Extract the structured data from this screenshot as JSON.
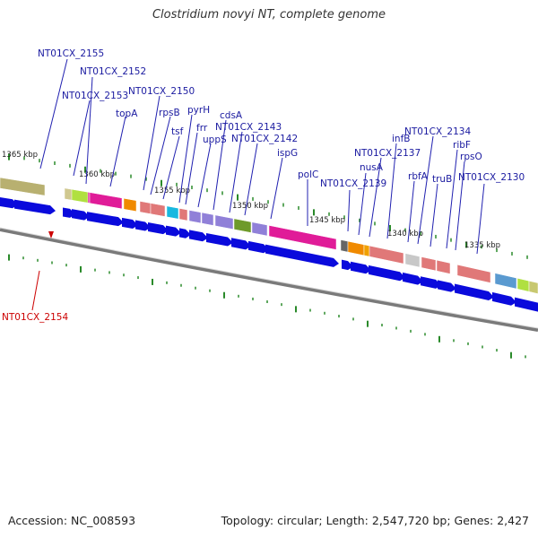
{
  "title": "Clostridium novyi NT, complete genome",
  "footer": {
    "accession": "Accession: NC_008593",
    "summary": "Topology: circular; Length: 2,547,720 bp; Genes: 2,427"
  },
  "colors": {
    "backbone": "#7a7a7a",
    "arrow": "#0a0adc",
    "label": "#1a1aa0",
    "highlight_label": "#cc0000",
    "tick": "#2a8a2a"
  },
  "kbp_ticks": [
    "1365 kbp",
    "1360 kbp",
    "1355 kbp",
    "1350 kbp",
    "1345 kbp",
    "1340 kbp",
    "1335 kbp"
  ],
  "gene_labels": [
    "NT01CX_2155",
    "NT01CX_2152",
    "NT01CX_2153",
    "NT01CX_2150",
    "topA",
    "rpsB",
    "tsf",
    "pyrH",
    "frr",
    "uppS",
    "cdsA",
    "NT01CX_2143",
    "NT01CX_2142",
    "ispG",
    "polC",
    "NT01CX_2139",
    "NT01CX_2137",
    "nusA",
    "infB",
    "rbfA",
    "NT01CX_2134",
    "truB",
    "ribF",
    "rpsO",
    "NT01CX_2130"
  ],
  "highlight_labels": [
    "NT01CX_2154"
  ]
}
